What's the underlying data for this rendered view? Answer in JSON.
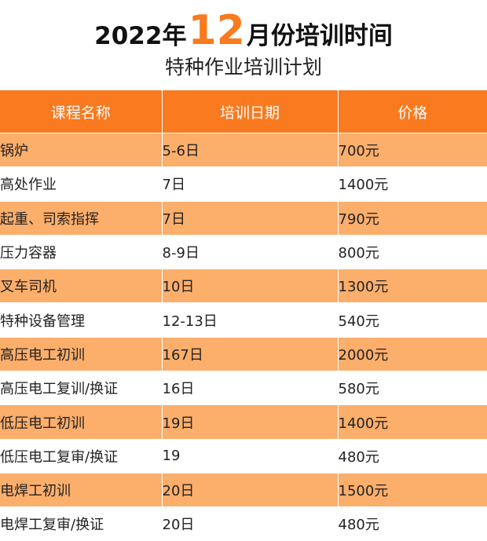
{
  "title": {
    "year": "2022年",
    "month_number": "12",
    "suffix": "月份培训时间"
  },
  "subtitle": "特种作业培训计划",
  "colors": {
    "accent": "#f97a1f",
    "row_stripe": "#fcae6b"
  },
  "table": {
    "headers": [
      "课程名称",
      "培训日期",
      "价格"
    ],
    "rows": [
      {
        "course": "锅炉",
        "date": "5-6日",
        "price": "700元"
      },
      {
        "course": "高处作业",
        "date": "7日",
        "price": "1400元"
      },
      {
        "course": "起重、司索指挥",
        "date": "7日",
        "price": "790元"
      },
      {
        "course": "压力容器",
        "date": "8-9日",
        "price": "800元"
      },
      {
        "course": "叉车司机",
        "date": "10日",
        "price": "1300元"
      },
      {
        "course": "特种设备管理",
        "date": "12-13日",
        "price": "540元"
      },
      {
        "course": "高压电工初训",
        "date": "167日",
        "price": "2000元"
      },
      {
        "course": "高压电工复训/换证",
        "date": "16日",
        "price": "580元"
      },
      {
        "course": "低压电工初训",
        "date": "19日",
        "price": "1400元"
      },
      {
        "course": "低压电工复审/换证",
        "date": "19",
        "price": "480元"
      },
      {
        "course": "电焊工初训",
        "date": "20日",
        "price": "1500元"
      },
      {
        "course": "电焊工复审/换证",
        "date": "20日",
        "price": "480元"
      }
    ]
  }
}
